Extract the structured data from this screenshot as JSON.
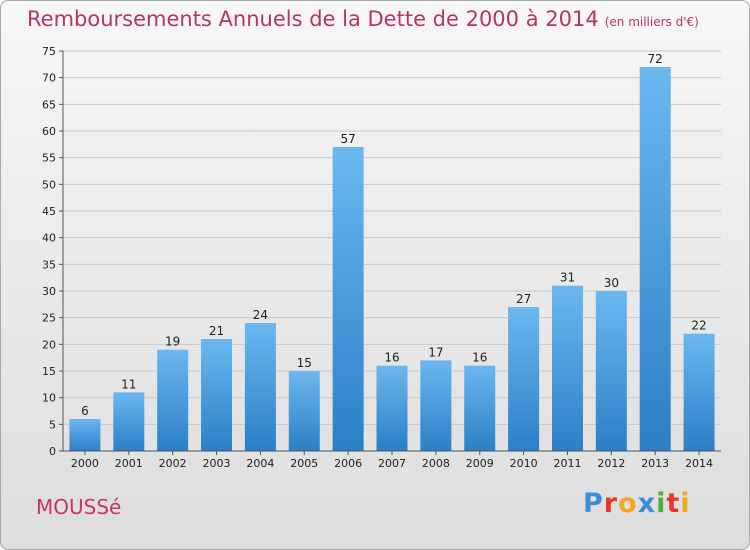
{
  "header": {
    "title": "Remboursements Annuels de la Dette de 2000 à 2014",
    "unit": "(en milliers d'€)"
  },
  "footer": {
    "commune": "MOUSSé",
    "brand": "Proxiti",
    "brand_letters": [
      "P",
      "r",
      "o",
      "x",
      "i",
      "t",
      "i"
    ],
    "brand_colors": [
      "#3a8fd8",
      "#e8392f",
      "#f2a91f",
      "#3a8fd8",
      "#4caf3a",
      "#e8392f",
      "#f2a91f"
    ]
  },
  "colors": {
    "bar_top": "#6bb8f0",
    "bar_bottom": "#2c7fc6",
    "grid": "#c8c8c8",
    "axis": "#555555"
  },
  "chart_data": {
    "type": "bar",
    "title": "Remboursements Annuels de la Dette de 2000 à 2014",
    "xlabel": "",
    "ylabel": "",
    "ylim": [
      0,
      75
    ],
    "yticks": [
      0,
      5,
      10,
      15,
      20,
      25,
      30,
      35,
      40,
      45,
      50,
      55,
      60,
      65,
      70,
      75
    ],
    "grid": true,
    "categories": [
      "2000",
      "2001",
      "2002",
      "2003",
      "2004",
      "2005",
      "2006",
      "2007",
      "2008",
      "2009",
      "2010",
      "2011",
      "2012",
      "2013",
      "2014"
    ],
    "values": [
      6,
      11,
      19,
      21,
      24,
      15,
      57,
      16,
      17,
      16,
      27,
      31,
      30,
      72,
      22
    ]
  }
}
